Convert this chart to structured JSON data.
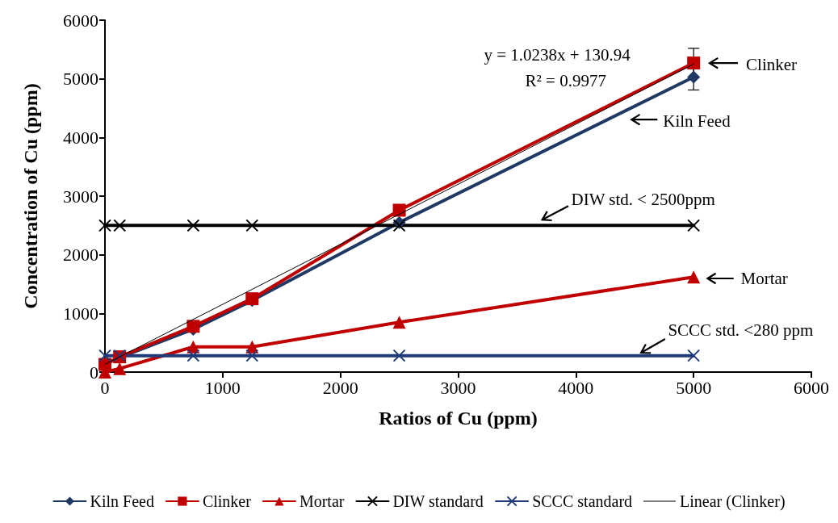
{
  "chart_data": {
    "type": "line",
    "xlabel": "Ratios of Cu (ppm)",
    "ylabel": "Concentration of Cu (ppm)",
    "xlim": [
      0,
      6000
    ],
    "xticks": [
      0,
      1000,
      2000,
      3000,
      4000,
      5000,
      6000
    ],
    "ylim": [
      0,
      6000
    ],
    "yticks": [
      0,
      1000,
      2000,
      3000,
      4000,
      5000,
      6000
    ],
    "grid": false,
    "legend": "bottom",
    "line_style": "solid",
    "series": [
      {
        "name": "Kiln Feed",
        "color": "#1f3864",
        "marker": "diamond",
        "x": [
          0,
          125,
          750,
          1250,
          2500,
          5000
        ],
        "values": [
          130,
          250,
          730,
          1220,
          2550,
          5030
        ],
        "errors": [
          null,
          null,
          null,
          null,
          null,
          220
        ]
      },
      {
        "name": "Clinker",
        "color": "#c00000",
        "marker": "square",
        "x": [
          0,
          125,
          750,
          1250,
          2500,
          5000
        ],
        "values": [
          130,
          260,
          780,
          1250,
          2760,
          5270
        ],
        "errors": [
          null,
          null,
          null,
          null,
          null,
          250
        ]
      },
      {
        "name": "Mortar",
        "color": "#c00000",
        "marker": "triangle",
        "x": [
          0,
          125,
          750,
          1250,
          2500,
          5000
        ],
        "values": [
          0,
          60,
          430,
          430,
          850,
          1620
        ]
      },
      {
        "name": "DIW standard",
        "color": "#000000",
        "marker": "cross",
        "x": [
          0,
          125,
          750,
          1250,
          2500,
          5000
        ],
        "values": [
          2500,
          2500,
          2500,
          2500,
          2500,
          2500
        ]
      },
      {
        "name": "SCCC standard",
        "color": "#1f3a78",
        "marker": "cross",
        "x": [
          0,
          125,
          750,
          1250,
          2500,
          5000
        ],
        "values": [
          280,
          280,
          280,
          280,
          280,
          280
        ]
      },
      {
        "name": "Linear (Clinker)",
        "color": "#000000",
        "marker": "none",
        "x": [
          0,
          5000
        ],
        "values": [
          131,
          5250
        ]
      }
    ],
    "annotations": [
      "y = 1.0238x + 130.94",
      "R² = 0.9977",
      "Clinker",
      "Kiln Feed",
      "DIW std. < 2500ppm",
      "Mortar",
      "SCCC std. <280 ppm"
    ]
  }
}
